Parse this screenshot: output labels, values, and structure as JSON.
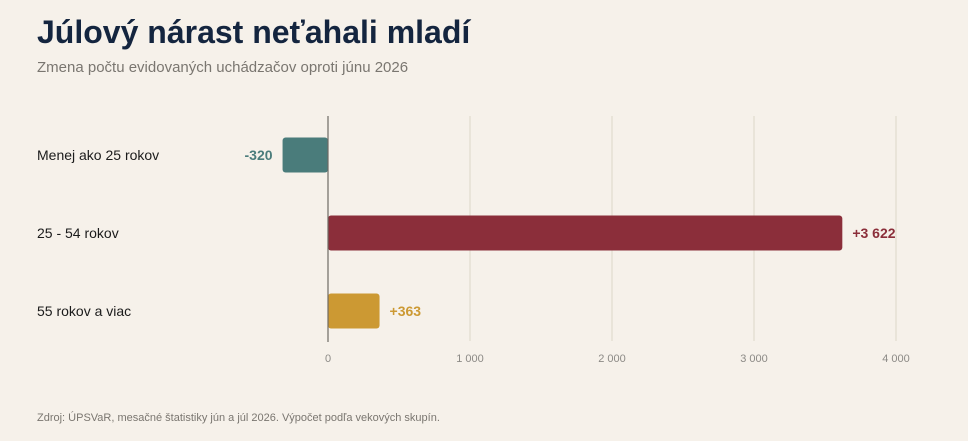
{
  "header": {
    "title": "Júlový nárast neťahali mladí",
    "subtitle": "Zmena počtu evidovaných uchádzačov oproti júnu 2026"
  },
  "footer": {
    "source": "Zdroj: ÚPSVaR, mesačné štatistiky jún a júl 2026. Výpočet podľa vekových skupín."
  },
  "chart_data": {
    "type": "bar",
    "orientation": "horizontal",
    "categories": [
      "Menej ako 25 rokov",
      "25 - 54 rokov",
      "55 rokov a viac"
    ],
    "values": [
      -320,
      3622,
      363
    ],
    "value_labels": [
      "-320",
      "+3 622",
      "+363"
    ],
    "colors": [
      "#4a7c7b",
      "#8b2e3a",
      "#cc9933"
    ],
    "xlim": [
      -320,
      4000
    ],
    "xticks": [
      0,
      1000,
      2000,
      3000,
      4000
    ],
    "xtick_labels": [
      "0",
      "1 000",
      "2 000",
      "3 000",
      "4 000"
    ],
    "grid": true,
    "title": "Júlový nárast neťahali mladí",
    "subtitle": "Zmena počtu evidovaných uchádzačov oproti júnu 2026"
  }
}
